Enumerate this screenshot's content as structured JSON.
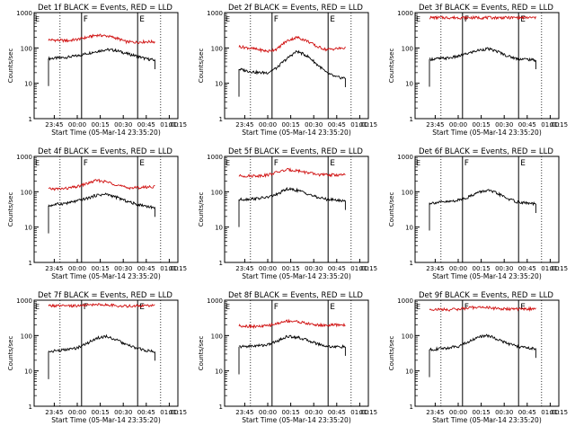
{
  "colors": {
    "background": "#ffffff",
    "axes": "#000000",
    "events_line": "#000000",
    "lld_line": "#d01010"
  },
  "chart_data": [
    {
      "type": "line",
      "title": "Det 1f BLACK = Events, RED = LLD",
      "xlabel": "Start Time (05-Mar-14 23:35:20)",
      "ylabel": "Counts/sec",
      "yscale": "log",
      "ylim": [
        1,
        1000
      ],
      "y_ticks": [
        "1",
        "10",
        "100",
        "1000"
      ],
      "x_ticks": [
        "23:45",
        "00:00",
        "00:15",
        "00:30",
        "00:45",
        "01:00",
        "01:15"
      ],
      "markers": [
        "F",
        "E"
      ],
      "series": [
        {
          "name": "Events",
          "color": "#000000",
          "values": [
            50,
            52,
            55,
            60,
            70,
            80,
            90,
            85,
            70,
            60,
            50,
            45
          ]
        },
        {
          "name": "LLD",
          "color": "#d01010",
          "values": [
            170,
            165,
            160,
            175,
            200,
            230,
            220,
            190,
            150,
            145,
            150,
            150
          ]
        }
      ]
    },
    {
      "type": "line",
      "title": "Det 2f BLACK = Events, RED = LLD",
      "xlabel": "Start Time (05-Mar-14 23:35:20)",
      "ylabel": "Counts/sec",
      "yscale": "log",
      "ylim": [
        1,
        1000
      ],
      "y_ticks": [
        "1",
        "10",
        "100",
        "1000"
      ],
      "x_ticks": [
        "23:45",
        "00:00",
        "00:15",
        "00:30",
        "00:45",
        "01:00",
        "01:15"
      ],
      "markers": [
        "F",
        "E"
      ],
      "series": [
        {
          "name": "Events",
          "color": "#000000",
          "values": [
            25,
            22,
            20,
            20,
            28,
            50,
            80,
            60,
            35,
            20,
            15,
            14
          ]
        },
        {
          "name": "LLD",
          "color": "#d01010",
          "values": [
            110,
            100,
            90,
            80,
            95,
            160,
            200,
            160,
            110,
            90,
            95,
            100
          ]
        }
      ]
    },
    {
      "type": "line",
      "title": "Det 3f BLACK = Events, RED = LLD",
      "xlabel": "Start Time (05-Mar-14 23:35:20)",
      "ylabel": "Counts/sec",
      "yscale": "log",
      "ylim": [
        1,
        1000
      ],
      "y_ticks": [
        "1",
        "10",
        "100",
        "1000"
      ],
      "x_ticks": [
        "23:45",
        "00:00",
        "00:15",
        "00:30",
        "00:45",
        "01:00",
        "01:15"
      ],
      "markers": [
        "F",
        "E"
      ],
      "series": [
        {
          "name": "Events",
          "color": "#000000",
          "values": [
            48,
            50,
            52,
            58,
            70,
            85,
            95,
            80,
            60,
            50,
            48,
            45
          ]
        },
        {
          "name": "LLD",
          "color": "#d01010",
          "values": [
            720,
            720,
            720,
            720,
            720,
            720,
            720,
            720,
            720,
            720,
            720,
            720
          ]
        }
      ]
    },
    {
      "type": "line",
      "title": "Det 4f BLACK = Events, RED = LLD",
      "xlabel": "Start Time (05-Mar-14 23:35:20)",
      "ylabel": "Counts/sec",
      "yscale": "log",
      "ylim": [
        1,
        1000
      ],
      "y_ticks": [
        "1",
        "10",
        "100",
        "1000"
      ],
      "x_ticks": [
        "23:45",
        "00:00",
        "00:15",
        "00:30",
        "00:45",
        "01:00",
        "01:15"
      ],
      "markers": [
        "F",
        "E"
      ],
      "series": [
        {
          "name": "Events",
          "color": "#000000",
          "values": [
            40,
            45,
            48,
            55,
            65,
            80,
            85,
            70,
            55,
            45,
            40,
            35
          ]
        },
        {
          "name": "LLD",
          "color": "#d01010",
          "values": [
            120,
            120,
            125,
            140,
            170,
            210,
            190,
            160,
            130,
            130,
            135,
            140
          ]
        }
      ]
    },
    {
      "type": "line",
      "title": "Det 5f BLACK = Events, RED = LLD",
      "xlabel": "Start Time (05-Mar-14 23:35:20)",
      "ylabel": "Counts/sec",
      "yscale": "log",
      "ylim": [
        1,
        1000
      ],
      "y_ticks": [
        "1",
        "10",
        "100",
        "1000"
      ],
      "x_ticks": [
        "23:45",
        "00:00",
        "00:15",
        "00:30",
        "00:45",
        "01:00",
        "01:15"
      ],
      "markers": [
        "F",
        "E"
      ],
      "series": [
        {
          "name": "Events",
          "color": "#000000",
          "values": [
            60,
            62,
            65,
            70,
            85,
            120,
            110,
            90,
            70,
            62,
            58,
            55
          ]
        },
        {
          "name": "LLD",
          "color": "#d01010",
          "values": [
            280,
            280,
            285,
            300,
            360,
            420,
            400,
            350,
            310,
            300,
            300,
            300
          ]
        }
      ]
    },
    {
      "type": "line",
      "title": "Det 6f BLACK = Events, RED = LLD",
      "xlabel": "Start Time (05-Mar-14 23:35:20)",
      "ylabel": "Counts/sec",
      "yscale": "log",
      "ylim": [
        1,
        1000
      ],
      "y_ticks": [
        "1",
        "10",
        "100",
        "1000"
      ],
      "x_ticks": [
        "23:45",
        "00:00",
        "00:15",
        "00:30",
        "00:45",
        "01:00",
        "01:15"
      ],
      "markers": [
        "F",
        "E"
      ],
      "series": [
        {
          "name": "Events",
          "color": "#000000",
          "values": [
            48,
            50,
            52,
            58,
            70,
            95,
            110,
            90,
            65,
            52,
            48,
            45
          ]
        }
      ]
    },
    {
      "type": "line",
      "title": "Det 7f BLACK = Events, RED = LLD",
      "xlabel": "Start Time (05-Mar-14 23:35:20)",
      "ylabel": "Counts/sec",
      "yscale": "log",
      "ylim": [
        1,
        1000
      ],
      "y_ticks": [
        "1",
        "10",
        "100",
        "1000"
      ],
      "x_ticks": [
        "23:45",
        "00:00",
        "00:15",
        "00:30",
        "00:45",
        "01:00",
        "01:15"
      ],
      "markers": [
        "F",
        "E"
      ],
      "series": [
        {
          "name": "Events",
          "color": "#000000",
          "values": [
            35,
            38,
            40,
            45,
            60,
            85,
            95,
            75,
            55,
            45,
            38,
            35
          ]
        },
        {
          "name": "LLD",
          "color": "#d01010",
          "values": [
            700,
            690,
            680,
            700,
            720,
            760,
            740,
            700,
            680,
            690,
            700,
            700
          ]
        }
      ]
    },
    {
      "type": "line",
      "title": "Det 8f BLACK = Events, RED = LLD",
      "xlabel": "Start Time (05-Mar-14 23:35:20)",
      "ylabel": "Counts/sec",
      "yscale": "log",
      "ylim": [
        1,
        1000
      ],
      "y_ticks": [
        "1",
        "10",
        "100",
        "1000"
      ],
      "x_ticks": [
        "23:45",
        "00:00",
        "00:15",
        "00:30",
        "00:45",
        "01:00",
        "01:15"
      ],
      "markers": [
        "F",
        "E"
      ],
      "series": [
        {
          "name": "Events",
          "color": "#000000",
          "values": [
            48,
            50,
            52,
            55,
            70,
            95,
            90,
            75,
            60,
            50,
            48,
            48
          ]
        },
        {
          "name": "LLD",
          "color": "#d01010",
          "values": [
            190,
            185,
            180,
            190,
            220,
            260,
            250,
            220,
            200,
            195,
            200,
            200
          ]
        }
      ]
    },
    {
      "type": "line",
      "title": "Det 9f BLACK = Events, RED = LLD",
      "xlabel": "Start Time (05-Mar-14 23:35:20)",
      "ylabel": "Counts/sec",
      "yscale": "log",
      "ylim": [
        1,
        1000
      ],
      "y_ticks": [
        "1",
        "10",
        "100",
        "1000"
      ],
      "x_ticks": [
        "23:45",
        "00:00",
        "00:15",
        "00:30",
        "00:45",
        "01:00",
        "01:15"
      ],
      "markers": [
        "F",
        "E"
      ],
      "series": [
        {
          "name": "Events",
          "color": "#000000",
          "values": [
            40,
            42,
            45,
            50,
            65,
            90,
            100,
            80,
            60,
            50,
            45,
            42
          ]
        },
        {
          "name": "LLD",
          "color": "#d01010",
          "values": [
            550,
            550,
            540,
            560,
            600,
            640,
            620,
            580,
            560,
            560,
            570,
            570
          ]
        }
      ]
    }
  ]
}
